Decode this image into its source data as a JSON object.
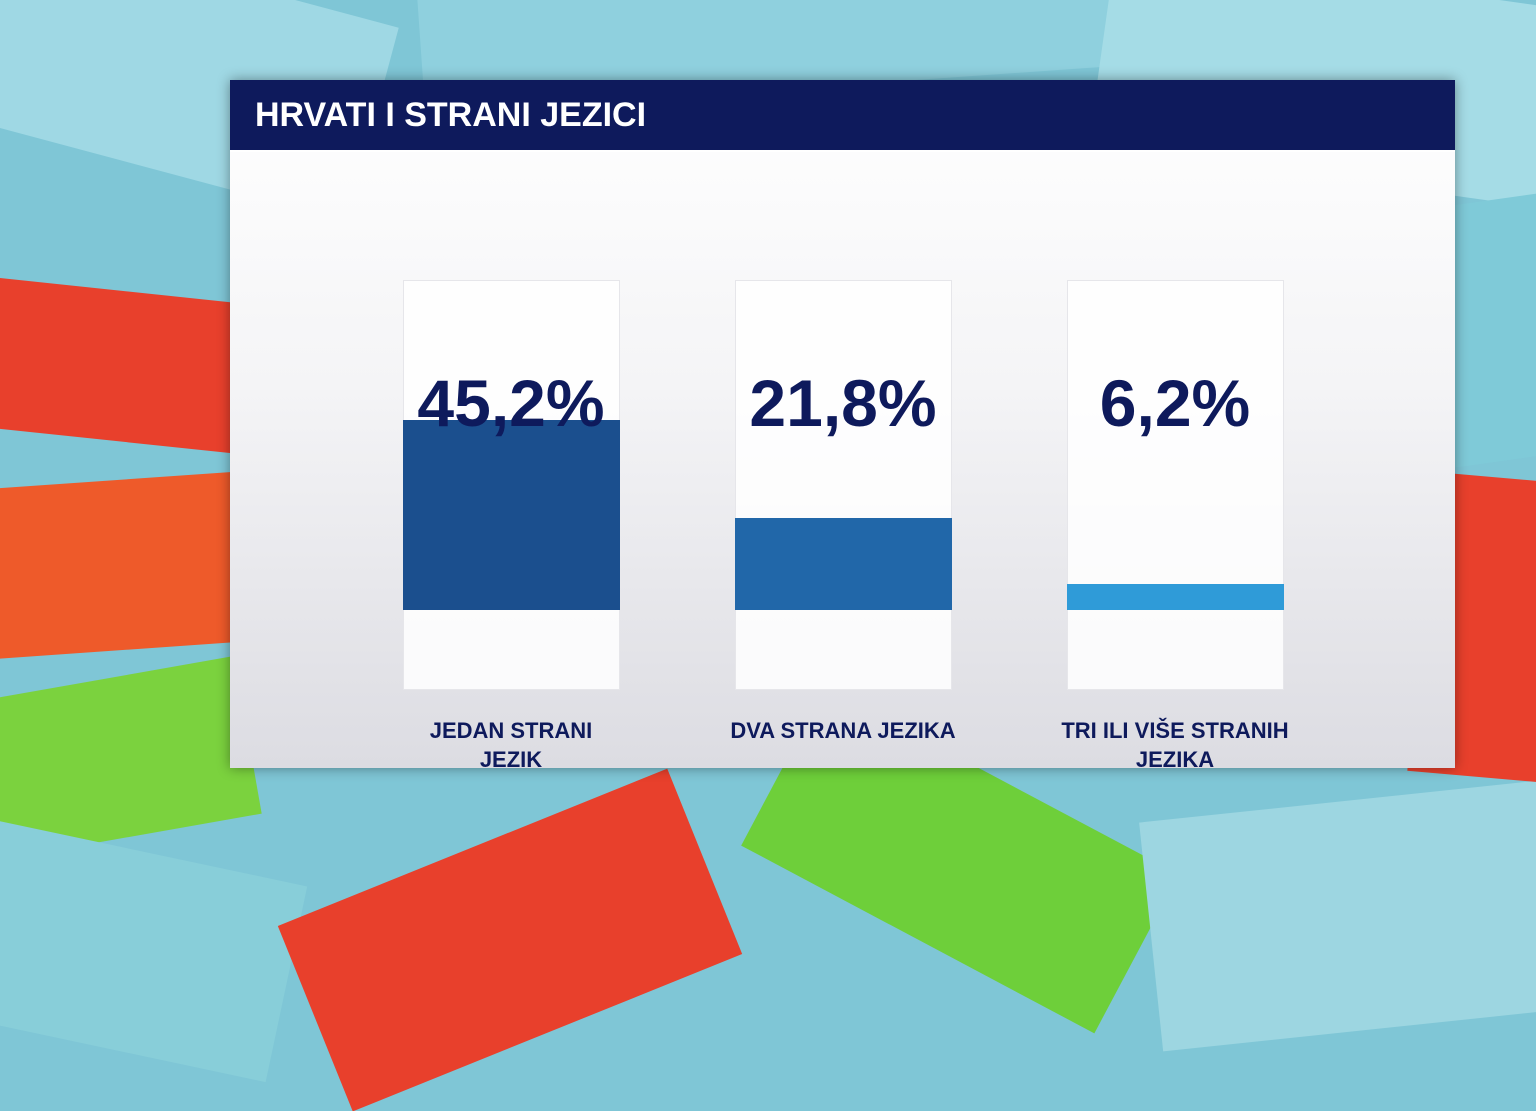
{
  "chart_data": {
    "type": "bar",
    "title": "HRVATI I STRANI JEZICI",
    "categories": [
      "JEDAN STRANI JEZIK",
      "DVA STRANA JEZIKA",
      "TRI ILI VIŠE STRANIH JEZIKA"
    ],
    "values": [
      45.2,
      21.8,
      6.2
    ],
    "value_labels": [
      "45,2%",
      "21,8%",
      "6,2%"
    ],
    "colors": [
      "#1b4f8e",
      "#2167a9",
      "#2f9bd8"
    ]
  }
}
